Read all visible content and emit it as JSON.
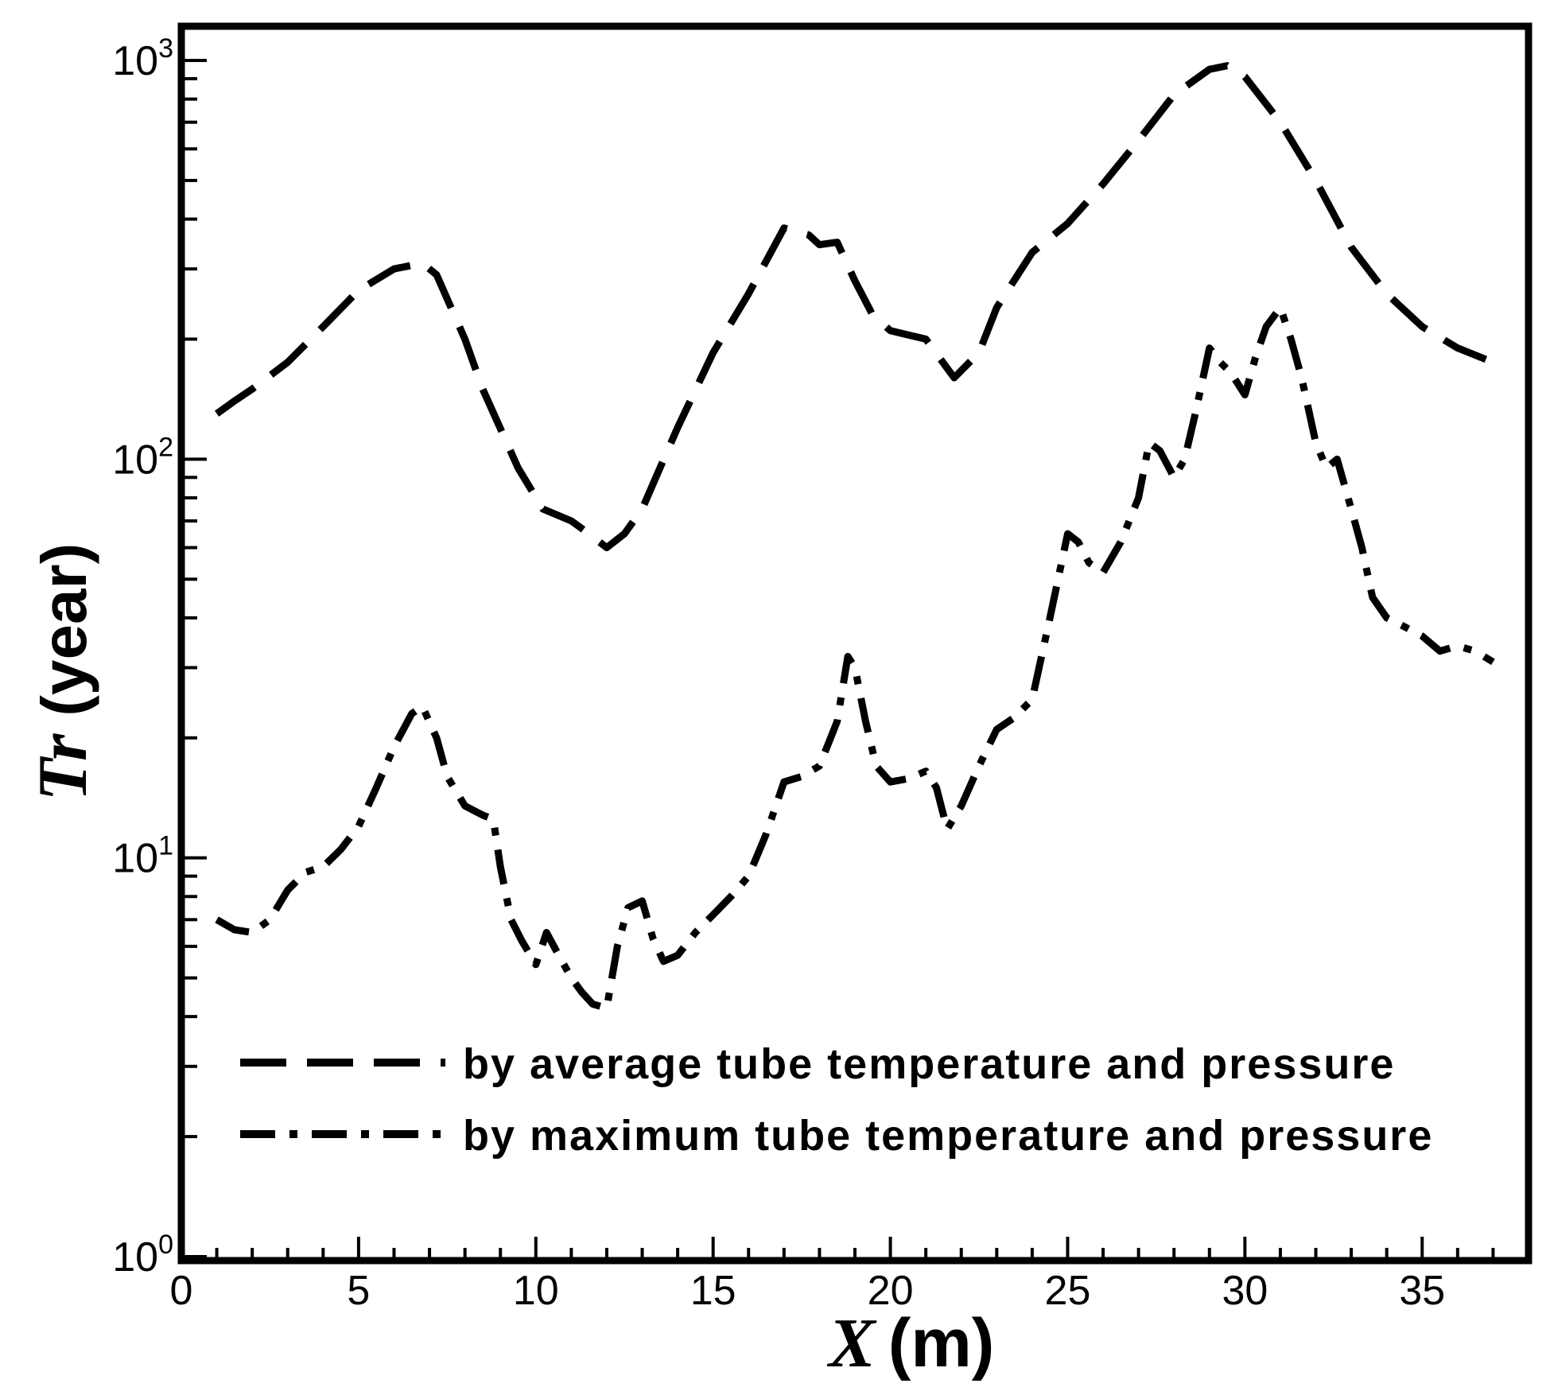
{
  "chart_data": {
    "type": "line",
    "title": "",
    "xlabel": {
      "symbol": "X",
      "unit": "(m)"
    },
    "ylabel": {
      "symbol": "Tr",
      "unit": "(year)"
    },
    "xlim": [
      0,
      38
    ],
    "ylim": [
      1,
      1000
    ],
    "yscale": "log",
    "xticks": [
      0,
      5,
      10,
      15,
      20,
      25,
      30,
      35
    ],
    "xtick_labels": [
      "0",
      "5",
      "10",
      "15",
      "20",
      "25",
      "30",
      "35"
    ],
    "yticks": [
      1,
      10,
      100,
      1000
    ],
    "ytick_labels": [
      {
        "base": "10",
        "exp": "0"
      },
      {
        "base": "10",
        "exp": "1"
      },
      {
        "base": "10",
        "exp": "2"
      },
      {
        "base": "10",
        "exp": "3"
      }
    ],
    "grid": false,
    "legend_position": "bottom-left",
    "series": [
      {
        "name": "by average tube temperature and pressure",
        "style": "dashed",
        "x": [
          1,
          1.5,
          2,
          3,
          4,
          5,
          6,
          6.8,
          7.2,
          8,
          8.5,
          9.5,
          10.2,
          11,
          11.5,
          12,
          12.5,
          13,
          13.5,
          14,
          15,
          16,
          17,
          17.7,
          18,
          18.5,
          19,
          19.5,
          20,
          21,
          21.8,
          22.5,
          23,
          24,
          25,
          26,
          27,
          28,
          29,
          29.5,
          30,
          31,
          32,
          33,
          34,
          35,
          36,
          37
        ],
        "y": [
          130,
          140,
          150,
          175,
          215,
          265,
          300,
          310,
          290,
          200,
          150,
          95,
          75,
          70,
          65,
          60,
          65,
          75,
          95,
          120,
          185,
          260,
          380,
          365,
          345,
          350,
          280,
          230,
          210,
          200,
          160,
          185,
          240,
          330,
          390,
          490,
          630,
          820,
          950,
          970,
          910,
          700,
          500,
          340,
          260,
          215,
          190,
          175
        ]
      },
      {
        "name": "by maximum tube temperature and pressure",
        "style": "dashdot",
        "x": [
          1,
          1.5,
          2,
          2.5,
          3,
          3.5,
          4,
          4.5,
          5,
          5.5,
          6,
          6.5,
          6.8,
          7.2,
          7.5,
          8,
          8.5,
          8.8,
          9,
          9.3,
          9.6,
          10,
          10.3,
          10.6,
          11,
          11.3,
          11.6,
          12,
          12.3,
          12.6,
          13,
          13.3,
          13.6,
          14,
          14.5,
          15,
          15.5,
          16,
          16.5,
          17,
          17.5,
          18,
          18.5,
          18.8,
          19,
          19.3,
          19.6,
          20,
          20.5,
          21,
          21.3,
          21.6,
          22,
          22.5,
          23,
          23.5,
          24,
          24.5,
          25,
          25.3,
          25.6,
          26,
          26.5,
          27,
          27.3,
          27.6,
          28,
          28.3,
          28.6,
          29,
          29.3,
          29.6,
          30,
          30.3,
          30.6,
          31,
          31.3,
          31.6,
          32,
          32.3,
          32.6,
          33,
          33.3,
          33.6,
          34,
          34.5,
          35,
          35.5,
          36,
          36.5,
          37
        ],
        "y": [
          7,
          6.6,
          6.5,
          7,
          8.3,
          9.2,
          9.5,
          10.5,
          12,
          15,
          19,
          23,
          24,
          20,
          16,
          13.5,
          12.8,
          12.5,
          9.5,
          7,
          6.2,
          5.4,
          6.5,
          5.8,
          5,
          4.6,
          4.3,
          4.2,
          6,
          7.5,
          7.8,
          6.3,
          5.5,
          5.7,
          6.5,
          7.2,
          8,
          9,
          11.5,
          15.5,
          16,
          17,
          22,
          32,
          30,
          22,
          17,
          15.5,
          15.8,
          16.5,
          15,
          11.8,
          13.5,
          17,
          21,
          22.5,
          25,
          40,
          65,
          62,
          55,
          52,
          62,
          80,
          110,
          105,
          90,
          100,
          130,
          190,
          175,
          165,
          145,
          180,
          215,
          240,
          200,
          160,
          110,
          95,
          100,
          75,
          60,
          45,
          40,
          38,
          36,
          33,
          34,
          33,
          31
        ]
      }
    ]
  }
}
